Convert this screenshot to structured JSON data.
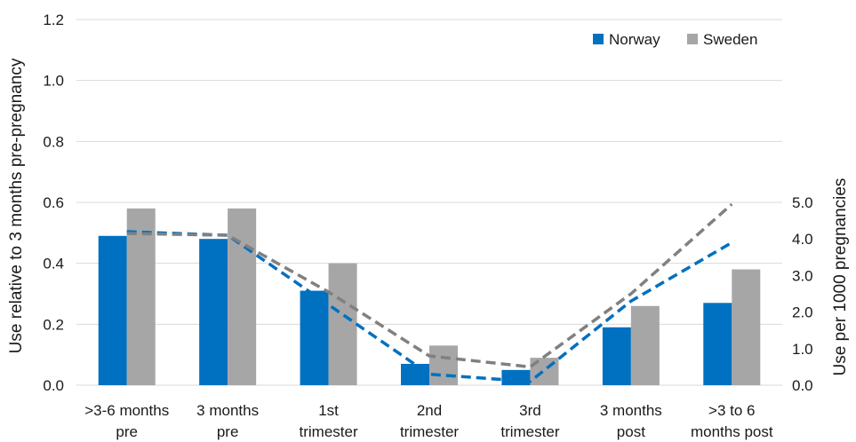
{
  "chart_data": {
    "type": "bar",
    "categories": [
      [
        ">3-6 months",
        "pre"
      ],
      [
        "3 months",
        "pre"
      ],
      [
        "1st",
        "trimester"
      ],
      [
        "2nd",
        "trimester"
      ],
      [
        "3rd",
        "trimester"
      ],
      [
        "3 months",
        "post"
      ],
      [
        ">3 to 6",
        "months post"
      ]
    ],
    "bar_axis": {
      "label": "Use relative to 3 months pre-pregnancy",
      "ylim": [
        0,
        1.2
      ],
      "ticks": [
        "0.0",
        "0.2",
        "0.4",
        "0.6",
        "0.8",
        "1.0",
        "1.2"
      ]
    },
    "line_axis": {
      "label": "Use per 1000 pregnancies",
      "ylim": [
        0,
        5.0
      ],
      "ticks": [
        "0.0",
        "1.0",
        "2.0",
        "3.0",
        "4.0",
        "5.0"
      ]
    },
    "series": [
      {
        "name": "Norway",
        "kind": "bar",
        "color": "#0070c0",
        "values": [
          0.49,
          0.48,
          0.31,
          0.07,
          0.05,
          0.19,
          0.27
        ]
      },
      {
        "name": "Sweden",
        "kind": "bar",
        "color": "#a6a6a6",
        "values": [
          0.58,
          0.58,
          0.4,
          0.13,
          0.09,
          0.26,
          0.38
        ]
      },
      {
        "kind": "dashed-line",
        "color": "#0070c0",
        "axis": "right",
        "values": [
          4.2,
          4.1,
          2.2,
          0.3,
          0.1,
          2.3,
          3.9
        ]
      },
      {
        "kind": "dashed-line",
        "color": "#808080",
        "axis": "right",
        "values": [
          4.15,
          4.1,
          2.55,
          0.8,
          0.5,
          2.5,
          4.95
        ]
      }
    ],
    "grid": true,
    "legend": "top-right"
  }
}
